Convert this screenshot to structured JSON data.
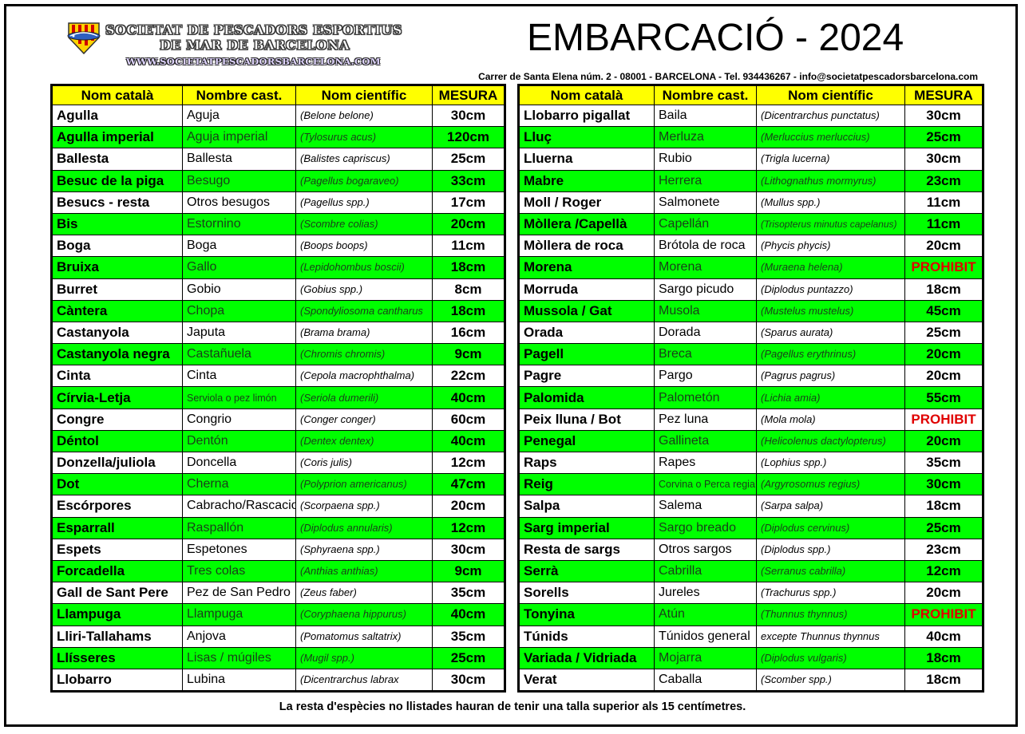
{
  "header": {
    "org_line1": "SOCIETAT DE PESCADORS ESPORTIUS",
    "org_line2": "DE MAR DE BARCELONA",
    "website": "WWW.SOCIETATPESCADORSBARCELONA.COM",
    "title": "EMBARCACIÓ - 2024",
    "address": "Carrer de Santa Elena núm. 2 - 08001 - BARCELONA - Tel. 934436267 - info@societatpescadorsbarcelona.com"
  },
  "columns": [
    "Nom català",
    "Nombre cast.",
    "Nom científic",
    "MESURA"
  ],
  "left_rows": [
    {
      "cat": "Agulla",
      "cas": "Aguja",
      "sci": "(Belone belone)",
      "mes": "30cm"
    },
    {
      "cat": "Agulla imperial",
      "cas": "Aguja imperial",
      "sci": "(Tylosurus acus)",
      "mes": "120cm"
    },
    {
      "cat": "Ballesta",
      "cas": "Ballesta",
      "sci": "(Balistes capriscus)",
      "mes": "25cm"
    },
    {
      "cat": "Besuc de la piga",
      "cas": "Besugo",
      "sci": "(Pagellus bogaraveo)",
      "mes": "33cm"
    },
    {
      "cat": "Besucs - resta",
      "cas": "Otros besugos",
      "sci": "(Pagellus spp.)",
      "mes": "17cm"
    },
    {
      "cat": "Bis",
      "cas": "Estornino",
      "sci": "(Scombre colias)",
      "mes": "20cm"
    },
    {
      "cat": "Boga",
      "cas": "Boga",
      "sci": "(Boops boops)",
      "mes": "11cm"
    },
    {
      "cat": "Bruixa",
      "cas": "Gallo",
      "sci": "(Lepidohombus boscii)",
      "mes": "18cm"
    },
    {
      "cat": "Burret",
      "cas": "Gobio",
      "sci": "(Gobius spp.)",
      "mes": "8cm"
    },
    {
      "cat": "Càntera",
      "cas": "Chopa",
      "sci": "(Spondyliosoma cantharus",
      "mes": "18cm"
    },
    {
      "cat": "Castanyola",
      "cas": "Japuta",
      "sci": "(Brama brama)",
      "mes": "16cm"
    },
    {
      "cat": "Castanyola negra",
      "cas": "Castañuela",
      "sci": "(Chromis chromis)",
      "mes": "9cm"
    },
    {
      "cat": "Cinta",
      "cas": "Cinta",
      "sci": "(Cepola macrophthalma)",
      "mes": "22cm"
    },
    {
      "cat": "Círvia-Letja",
      "cas": "Serviola o pez limón",
      "sci": "(Seriola dumerili)",
      "mes": "40cm"
    },
    {
      "cat": "Congre",
      "cas": "Congrio",
      "sci": "(Conger conger)",
      "mes": "60cm"
    },
    {
      "cat": "Déntol",
      "cas": "Dentón",
      "sci": "(Dentex dentex)",
      "mes": "40cm"
    },
    {
      "cat": "Donzella/juliola",
      "cas": "Doncella",
      "sci": "(Coris julis)",
      "mes": "12cm"
    },
    {
      "cat": "Dot",
      "cas": "Cherna",
      "sci": "(Polyprion americanus)",
      "mes": "47cm"
    },
    {
      "cat": "Escórpores",
      "cas": "Cabracho/Rascacio",
      "sci": "(Scorpaena spp.)",
      "mes": "20cm"
    },
    {
      "cat": "Esparrall",
      "cas": "Raspallón",
      "sci": "(Diplodus annularis)",
      "mes": "12cm"
    },
    {
      "cat": "Espets",
      "cas": "Espetones",
      "sci": "(Sphyraena spp.)",
      "mes": "30cm"
    },
    {
      "cat": "Forcadella",
      "cas": "Tres colas",
      "sci": "(Anthias anthias)",
      "mes": "9cm"
    },
    {
      "cat": "Gall de Sant Pere",
      "cas": "Pez de San Pedro",
      "sci": "(Zeus faber)",
      "mes": "35cm"
    },
    {
      "cat": "Llampuga",
      "cas": "Llampuga",
      "sci": "(Coryphaena hippurus)",
      "mes": "40cm"
    },
    {
      "cat": "Lliri-Tallahams",
      "cas": "Anjova",
      "sci": "(Pomatomus saltatrix)",
      "mes": "35cm"
    },
    {
      "cat": "Llísseres",
      "cas": "Lisas / múgiles",
      "sci": "(Mugil spp.)",
      "mes": "25cm"
    },
    {
      "cat": "Llobarro",
      "cas": "Lubina",
      "sci": "(Dicentrarchus labrax",
      "mes": "30cm"
    }
  ],
  "right_rows": [
    {
      "cat": "Llobarro pigallat",
      "cas": "Baila",
      "sci": "(Dicentrarchus punctatus)",
      "mes": "30cm"
    },
    {
      "cat": "Lluç",
      "cas": "Merluza",
      "sci": "(Merluccius merluccius)",
      "mes": "25cm"
    },
    {
      "cat": "Lluerna",
      "cas": "Rubio",
      "sci": "(Trigla lucerna)",
      "mes": "30cm"
    },
    {
      "cat": "Mabre",
      "cas": "Herrera",
      "sci": "(Lithognathus mormyrus)",
      "mes": "23cm"
    },
    {
      "cat": "Moll / Roger",
      "cas": "Salmonete",
      "sci": "(Mullus spp.)",
      "mes": "11cm"
    },
    {
      "cat": "Mòllera /Capellà",
      "cas": "Capellán",
      "sci": "(Trisopterus minutus capelanus)",
      "mes": "11cm"
    },
    {
      "cat": "Mòllera de roca",
      "cas": "Brótola de roca",
      "sci": "(Phycis phycis)",
      "mes": "20cm"
    },
    {
      "cat": "Morena",
      "cas": "Morena",
      "sci": "(Muraena helena)",
      "mes": "PROHIBIT"
    },
    {
      "cat": "Morruda",
      "cas": "Sargo picudo",
      "sci": "(Diplodus puntazzo)",
      "mes": "18cm"
    },
    {
      "cat": "Mussola / Gat",
      "cas": "Musola",
      "sci": "(Mustelus mustelus)",
      "mes": "45cm"
    },
    {
      "cat": "Orada",
      "cas": "Dorada",
      "sci": "(Sparus aurata)",
      "mes": "25cm"
    },
    {
      "cat": "Pagell",
      "cas": "Breca",
      "sci": "(Pagellus erythrinus)",
      "mes": "20cm"
    },
    {
      "cat": "Pagre",
      "cas": "Pargo",
      "sci": "(Pagrus pagrus)",
      "mes": "20cm"
    },
    {
      "cat": "Palomida",
      "cas": "Palometón",
      "sci": "(Lichia amia)",
      "mes": "55cm"
    },
    {
      "cat": "Peix lluna / Bot",
      "cas": "Pez luna",
      "sci": "(Mola mola)",
      "mes": "PROHIBIT"
    },
    {
      "cat": "Penegal",
      "cas": "Gallineta",
      "sci": "(Helicolenus dactylopterus)",
      "mes": "20cm"
    },
    {
      "cat": "Raps",
      "cas": "Rapes",
      "sci": "(Lophius spp.)",
      "mes": "35cm"
    },
    {
      "cat": "Reig",
      "cas": "Corvina o Perca regia",
      "sci": "(Argyrosomus regius)",
      "mes": "30cm"
    },
    {
      "cat": "Salpa",
      "cas": "Salema",
      "sci": "(Sarpa salpa)",
      "mes": "18cm"
    },
    {
      "cat": "Sarg imperial",
      "cas": "Sargo breado",
      "sci": "(Diplodus cervinus)",
      "mes": "25cm"
    },
    {
      "cat": "Resta de sargs",
      "cas": "Otros sargos",
      "sci": "(Diplodus spp.)",
      "mes": "23cm"
    },
    {
      "cat": "Serrà",
      "cas": "Cabrilla",
      "sci": "(Serranus cabrilla)",
      "mes": "12cm"
    },
    {
      "cat": "Sorells",
      "cas": "Jureles",
      "sci": "(Trachurus spp.)",
      "mes": "20cm"
    },
    {
      "cat": "Tonyina",
      "cas": "Atún",
      "sci": "(Thunnus thynnus)",
      "mes": "PROHIBIT"
    },
    {
      "cat": "Túnids",
      "cas": "Túnidos general",
      "sci": "excepte Thunnus thynnus",
      "mes": "40cm"
    },
    {
      "cat": "Variada / Vidriada",
      "cas": "Mojarra",
      "sci": "(Diplodus vulgaris)",
      "mes": "18cm"
    },
    {
      "cat": "Verat",
      "cas": "Caballa",
      "sci": "(Scomber spp.)",
      "mes": "18cm"
    }
  ],
  "footer": "La resta d'espècies no llistades hauran de tenir una talla superior als 15 centímetres.",
  "colors": {
    "header_yellow": "#ffff00",
    "row_green": "#00ff00",
    "prohibit_red": "#e00000"
  }
}
